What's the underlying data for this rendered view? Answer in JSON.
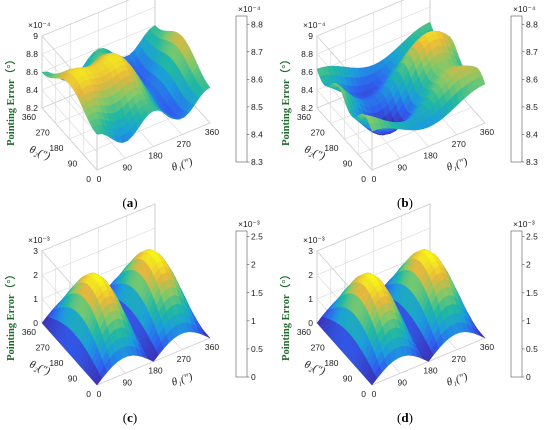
{
  "chart_data": [
    {
      "type": "surface",
      "panel_label": "(a)",
      "panel_letter": "a",
      "zlabel": "Pointing Error（°）",
      "xlabel": "θ₁(″)",
      "ylabel": "θ₂(″)",
      "x_ticks": [
        "0",
        "90",
        "180",
        "270",
        "360"
      ],
      "y_ticks": [
        "0",
        "90",
        "180",
        "270",
        "360"
      ],
      "z_ticks": [
        "8.2",
        "8.4",
        "8.6",
        "8.8",
        "9"
      ],
      "z_exponent": "×10⁻⁴",
      "zlim": [
        8.2,
        9.0
      ],
      "colorbar_ticks": [
        "8.3",
        "8.4",
        "8.5",
        "8.6",
        "8.7",
        "8.8"
      ],
      "colorbar_exponent": "×10⁻⁴",
      "colorbar_range": [
        8.3,
        8.83
      ],
      "colormap": [
        "#3e26a8",
        "#2f5ff0",
        "#1b9ddb",
        "#21b8a2",
        "#7ec96a",
        "#e7b73c",
        "#f9fb15"
      ]
    },
    {
      "type": "surface",
      "panel_label": "(b)",
      "panel_letter": "b",
      "zlabel": "Pointing Error（°）",
      "xlabel": "θ₁(″)",
      "ylabel": "θ₂(″)",
      "x_ticks": [
        "0",
        "90",
        "180",
        "270",
        "360"
      ],
      "y_ticks": [
        "0",
        "90",
        "180",
        "270",
        "360"
      ],
      "z_ticks": [
        "8.2",
        "8.4",
        "8.6",
        "8.8",
        "9"
      ],
      "z_exponent": "×10⁻⁴",
      "zlim": [
        8.2,
        9.0
      ],
      "colorbar_ticks": [
        "8.3",
        "8.4",
        "8.5",
        "8.6",
        "8.7",
        "8.8"
      ],
      "colorbar_exponent": "×10⁻⁴",
      "colorbar_range": [
        8.3,
        8.83
      ],
      "colormap": [
        "#3e26a8",
        "#2f5ff0",
        "#1b9ddb",
        "#21b8a2",
        "#7ec96a",
        "#e7b73c",
        "#f9fb15"
      ]
    },
    {
      "type": "surface",
      "panel_label": "(c)",
      "panel_letter": "c",
      "zlabel": "Pointing Error（°）",
      "xlabel": "θ₁(″)",
      "ylabel": "θ₂(″)",
      "x_ticks": [
        "0",
        "90",
        "180",
        "270",
        "360"
      ],
      "y_ticks": [
        "0",
        "90",
        "180",
        "270",
        "360"
      ],
      "z_ticks": [
        "0",
        "1",
        "2",
        "3"
      ],
      "z_exponent": "×10⁻³",
      "zlim": [
        0,
        3
      ],
      "colorbar_ticks": [
        "0",
        "0.5",
        "1",
        "1.5",
        "2",
        "2.5"
      ],
      "colorbar_exponent": "×10⁻³",
      "colorbar_range": [
        0,
        2.6
      ],
      "colormap": [
        "#3e26a8",
        "#2f5ff0",
        "#1b9ddb",
        "#21b8a2",
        "#7ec96a",
        "#e7b73c",
        "#f9fb15"
      ]
    },
    {
      "type": "surface",
      "panel_label": "(d)",
      "panel_letter": "d",
      "zlabel": "Pointing Error（°）",
      "xlabel": "θ₁(″)",
      "ylabel": "θ₂(″)",
      "x_ticks": [
        "0",
        "90",
        "180",
        "270",
        "360"
      ],
      "y_ticks": [
        "0",
        "90",
        "180",
        "270",
        "360"
      ],
      "z_ticks": [
        "0",
        "1",
        "2",
        "3"
      ],
      "z_exponent": "×10⁻³",
      "zlim": [
        0,
        3
      ],
      "colorbar_ticks": [
        "0",
        "0.5",
        "1",
        "1.5",
        "2",
        "2.5"
      ],
      "colorbar_exponent": "×10⁻³",
      "colorbar_range": [
        0,
        2.6
      ],
      "colormap": [
        "#3e26a8",
        "#2f5ff0",
        "#1b9ddb",
        "#21b8a2",
        "#7ec96a",
        "#e7b73c",
        "#f9fb15"
      ]
    }
  ]
}
